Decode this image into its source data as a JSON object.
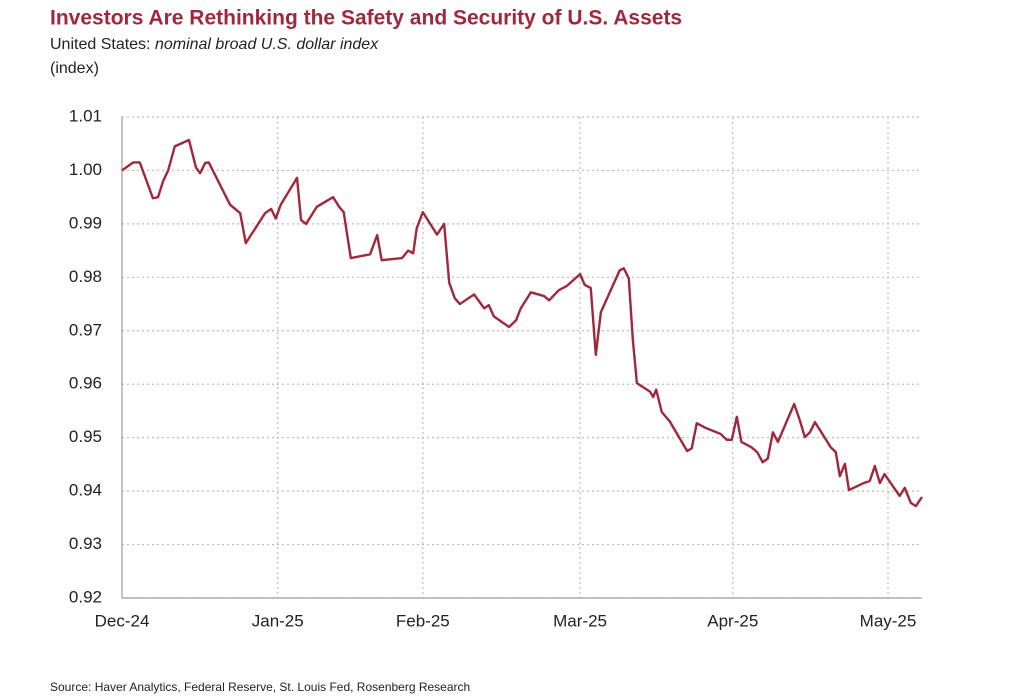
{
  "chart_data": {
    "type": "line",
    "title": "Investors Are Rethinking the Safety and Security of U.S. Assets",
    "subtitle_prefix": "United States: ",
    "subtitle": "nominal broad U.S. dollar index",
    "y_label": "(index)",
    "source": "Source: Haver Analytics, Federal Reserve, St. Louis Fed, Rosenberg Research",
    "color": "#a0283c",
    "grid": true,
    "x": [
      0,
      2.2,
      3.5,
      6.1,
      7.1,
      8.1,
      9.1,
      10.4,
      13.2,
      14.6,
      15.4,
      16.4,
      17.1,
      21.3,
      23.3,
      24.4,
      28.2,
      29.4,
      30.3,
      31.3,
      34.5,
      35.3,
      36.3,
      38.4,
      41.6,
      42.8,
      43.7,
      45.1,
      48.9,
      50.3,
      51.2,
      55.2,
      56.4,
      57.4,
      58.1,
      59.3,
      62.1,
      63.5,
      64.5,
      65.6,
      66.6,
      69.4,
      71.4,
      72.3,
      73.3,
      76.3,
      77.7,
      78.6,
      80.6,
      83.2,
      84.2,
      86.1,
      87.7,
      90.3,
      91.2,
      92.4,
      93.4,
      94.4,
      98.1,
      98.9,
      99.9,
      100.7,
      101.5,
      104.1,
      104.7,
      105.3,
      106.4,
      108.0,
      111.4,
      112.3,
      113.3,
      115.1,
      118.0,
      119.2,
      120.2,
      121.2,
      122.1,
      124.1,
      125.2,
      126.3,
      127.3,
      128.3,
      129.3,
      132.5,
      133.6,
      134.6,
      135.6,
      136.6,
      137.6,
      139.7,
      140.7,
      141.5,
      142.5,
      143.3,
      146.2,
      147.4,
      148.4,
      149.4,
      150.3,
      151.9,
      153.3,
      154.3,
      155.5,
      156.5,
      157.7
    ],
    "values": [
      1.0,
      1.0015,
      1.0015,
      0.9948,
      0.995,
      0.998,
      1.0,
      1.0045,
      1.0057,
      1.0005,
      0.9995,
      1.0014,
      1.0015,
      0.9936,
      0.992,
      0.9864,
      0.992,
      0.9928,
      0.991,
      0.9936,
      0.9986,
      0.9907,
      0.99,
      0.9932,
      0.995,
      0.9932,
      0.9922,
      0.9836,
      0.9843,
      0.9879,
      0.9832,
      0.9836,
      0.985,
      0.9845,
      0.9892,
      0.9922,
      0.988,
      0.99,
      0.979,
      0.9761,
      0.975,
      0.9768,
      0.9742,
      0.9748,
      0.9727,
      0.9707,
      0.972,
      0.9742,
      0.9772,
      0.9765,
      0.9757,
      0.9776,
      0.9784,
      0.9806,
      0.9786,
      0.978,
      0.9655,
      0.9735,
      0.9813,
      0.9817,
      0.9798,
      0.9683,
      0.9602,
      0.9586,
      0.9576,
      0.959,
      0.9548,
      0.953,
      0.9475,
      0.948,
      0.9527,
      0.9518,
      0.9507,
      0.9496,
      0.9496,
      0.9539,
      0.9492,
      0.9482,
      0.9473,
      0.9454,
      0.9461,
      0.951,
      0.9492,
      0.9563,
      0.9533,
      0.9501,
      0.951,
      0.9529,
      0.9514,
      0.9482,
      0.9473,
      0.9428,
      0.9451,
      0.9402,
      0.9415,
      0.9419,
      0.9447,
      0.9415,
      0.9432,
      0.941,
      0.9391,
      0.9406,
      0.9378,
      0.9372,
      0.9389
    ],
    "xlim": [
      0,
      157.7
    ],
    "xticks": [
      {
        "value": 0,
        "label": "Dec-24"
      },
      {
        "value": 30.7,
        "label": "Jan-25"
      },
      {
        "value": 59.3,
        "label": "Feb-25"
      },
      {
        "value": 90.3,
        "label": "Mar-25"
      },
      {
        "value": 120.4,
        "label": "Apr-25"
      },
      {
        "value": 151,
        "label": "May-25"
      }
    ],
    "ylim": [
      0.92,
      1.01
    ],
    "yticks": [
      0.92,
      0.93,
      0.94,
      0.95,
      0.96,
      0.97,
      0.98,
      0.99,
      {
        "value": 1,
        "label": "1.00"
      },
      1.01
    ]
  }
}
